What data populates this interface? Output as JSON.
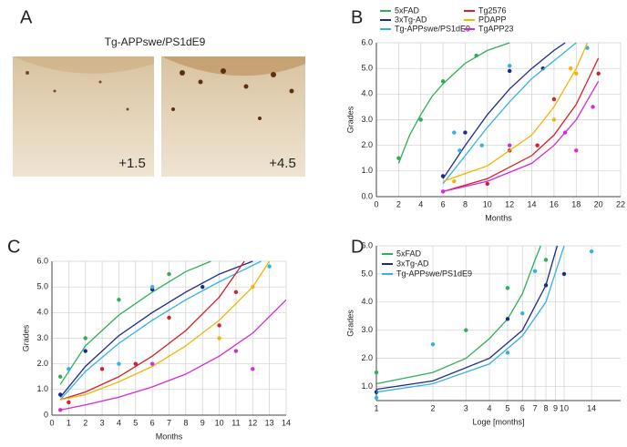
{
  "panel_a": {
    "label": "A",
    "title": "Tg-APPswe/PS1dE9",
    "images": [
      {
        "caption": "+1.5"
      },
      {
        "caption": "+4.5"
      }
    ]
  },
  "chart_data": [
    {
      "type": "scatter",
      "panel": "B",
      "x_label": "Months",
      "y_label": "Grades",
      "legend": "above",
      "grid": true,
      "xlim": [
        0,
        22
      ],
      "xticks": [
        0,
        2,
        4,
        6,
        8,
        10,
        12,
        14,
        16,
        18,
        20,
        22
      ],
      "ylim": [
        0,
        6
      ],
      "yticks": [
        {
          "value": 0,
          "label": "0.0"
        },
        {
          "value": 1,
          "label": "1.0"
        },
        {
          "value": 2,
          "label": "2.0"
        },
        {
          "value": 3,
          "label": "3.0"
        },
        {
          "value": 4,
          "label": "4.0"
        },
        {
          "value": 5,
          "label": "5.0"
        },
        {
          "value": 6,
          "label": "6.0"
        }
      ],
      "series": [
        {
          "name": "5xFAD",
          "color": "#2fae5a",
          "x": [
            2,
            4,
            6,
            9
          ],
          "values": [
            1.5,
            3.0,
            4.5,
            5.5
          ],
          "fit": {
            "x": [
              2,
              3,
              4,
              5,
              6,
              8,
              10,
              12
            ],
            "values": [
              1.3,
              2.4,
              3.2,
              3.9,
              4.4,
              5.2,
              5.7,
              6.0
            ]
          }
        },
        {
          "name": "3xTg-AD",
          "color": "#1c2a8c",
          "x": [
            6,
            8,
            12,
            15
          ],
          "values": [
            0.8,
            2.5,
            4.9,
            5.0
          ],
          "fit": {
            "x": [
              6,
              8,
              10,
              12,
              14,
              16,
              17
            ],
            "values": [
              0.7,
              2.0,
              3.2,
              4.2,
              5.0,
              5.7,
              6.0
            ]
          }
        },
        {
          "name": "Tg-APPswe/PS1dE9",
          "color": "#35b2e4",
          "x": [
            7,
            7.5,
            9.5,
            12,
            19
          ],
          "values": [
            2.5,
            1.8,
            2.0,
            5.1,
            5.8
          ],
          "fit": {
            "x": [
              6,
              8,
              10,
              12,
              14,
              16,
              18
            ],
            "values": [
              0.5,
              1.6,
              2.7,
              3.7,
              4.6,
              5.3,
              6.0
            ]
          }
        },
        {
          "name": "Tg2576",
          "color": "#d61f26",
          "x": [
            10,
            12,
            14.5,
            16,
            20
          ],
          "values": [
            0.5,
            1.8,
            2.0,
            3.8,
            4.8
          ],
          "fit": {
            "x": [
              6,
              10,
              14,
              16,
              18,
              20
            ],
            "values": [
              0.2,
              0.7,
              1.6,
              2.4,
              3.6,
              5.4
            ]
          }
        },
        {
          "name": "PDAPP",
          "color": "#f4b400",
          "x": [
            7,
            16,
            17.5,
            18
          ],
          "values": [
            0.6,
            3.0,
            5.0,
            4.8
          ],
          "fit": {
            "x": [
              6,
              10,
              14,
              16,
              18,
              19
            ],
            "values": [
              0.6,
              1.2,
              2.4,
              3.5,
              5.0,
              6.0
            ]
          }
        },
        {
          "name": "TgAPP23",
          "color": "#d62ad6",
          "x": [
            6,
            12,
            17,
            18,
            19.5
          ],
          "values": [
            0.2,
            2.0,
            2.5,
            1.8,
            3.5
          ],
          "fit": {
            "x": [
              6,
              10,
              14,
              16,
              18,
              20
            ],
            "values": [
              0.2,
              0.6,
              1.3,
              2.0,
              3.0,
              4.5
            ]
          }
        }
      ]
    },
    {
      "type": "scatter",
      "panel": "C",
      "x_label": "Months",
      "y_label": "Grades",
      "grid": true,
      "xlim": [
        0,
        14
      ],
      "xticks": [
        0,
        1,
        2,
        3,
        4,
        5,
        6,
        7,
        8,
        9,
        10,
        11,
        12,
        13,
        14
      ],
      "ylim": [
        0,
        6
      ],
      "yticks": [
        0,
        {
          "value": 1,
          "label": "1.0"
        },
        {
          "value": 2,
          "label": "2.0"
        },
        {
          "value": 3,
          "label": "3.0"
        },
        {
          "value": 4,
          "label": "4.0"
        },
        {
          "value": 5,
          "label": "5.0"
        },
        {
          "value": 6,
          "label": "6.0"
        }
      ],
      "series": [
        {
          "color": "#2fae5a",
          "x": [
            0.5,
            2,
            4,
            7
          ],
          "values": [
            1.5,
            3.0,
            4.5,
            5.5
          ],
          "fit": {
            "x": [
              0.5,
              2,
              4,
              6,
              8,
              9.5
            ],
            "values": [
              1.2,
              2.7,
              3.9,
              4.8,
              5.6,
              6.0
            ]
          }
        },
        {
          "color": "#1c2a8c",
          "x": [
            0.5,
            2,
            6,
            9
          ],
          "values": [
            0.8,
            2.5,
            4.9,
            5.0
          ],
          "fit": {
            "x": [
              0.5,
              2,
              4,
              6,
              8,
              10,
              12
            ],
            "values": [
              0.7,
              1.9,
              3.1,
              4.0,
              4.8,
              5.5,
              6.0
            ]
          }
        },
        {
          "color": "#35b2e4",
          "x": [
            1,
            4,
            6,
            13
          ],
          "values": [
            1.8,
            2.0,
            5.0,
            5.8
          ],
          "fit": {
            "x": [
              0.5,
              2,
              4,
              6,
              8,
              10,
              12.5
            ],
            "values": [
              0.6,
              1.7,
              2.8,
              3.7,
              4.5,
              5.2,
              6.0
            ]
          }
        },
        {
          "color": "#d61f26",
          "x": [
            1,
            3,
            5,
            7,
            10,
            11
          ],
          "values": [
            0.5,
            1.8,
            2.0,
            3.8,
            3.5,
            4.8
          ],
          "fit": {
            "x": [
              0.5,
              2,
              4,
              6,
              8,
              10,
              11.5
            ],
            "values": [
              0.6,
              0.9,
              1.5,
              2.3,
              3.3,
              4.6,
              6.0
            ]
          }
        },
        {
          "color": "#f4b400",
          "x": [
            10,
            12
          ],
          "values": [
            3.0,
            5.0
          ],
          "fit": {
            "x": [
              0.5,
              2,
              4,
              6,
              8,
              10,
              12,
              13
            ],
            "values": [
              0.6,
              0.8,
              1.3,
              1.9,
              2.7,
              3.7,
              5.0,
              6.0
            ]
          }
        },
        {
          "color": "#d62ad6",
          "x": [
            0.5,
            6,
            11,
            12
          ],
          "values": [
            0.2,
            2.0,
            2.5,
            1.8
          ],
          "fit": {
            "x": [
              0.5,
              2,
              4,
              6,
              8,
              10,
              12,
              14
            ],
            "values": [
              0.2,
              0.4,
              0.7,
              1.1,
              1.6,
              2.3,
              3.2,
              4.5
            ]
          }
        }
      ]
    },
    {
      "type": "scatter",
      "panel": "D",
      "x_label": "Loge [months]",
      "y_label": "Grades",
      "legend": "upper left",
      "grid": true,
      "xscale": "log",
      "xlim": [
        1,
        20
      ],
      "xticks": [
        1,
        2,
        3,
        4,
        5,
        6,
        7,
        8,
        9,
        10,
        14
      ],
      "ylim": [
        0.5,
        6
      ],
      "yticks": [
        {
          "value": 1,
          "label": "1.0"
        },
        {
          "value": 2,
          "label": "2.0"
        },
        {
          "value": 3,
          "label": "3.0"
        },
        {
          "value": 4,
          "label": "4.0"
        },
        {
          "value": 5,
          "label": "5.0"
        },
        {
          "value": 6,
          "label": "6.0"
        }
      ],
      "series": [
        {
          "name": "5xFAD",
          "color": "#2fae5a",
          "x": [
            1,
            3,
            5,
            8
          ],
          "values": [
            1.5,
            3.0,
            4.5,
            5.5
          ],
          "fit": {
            "x": [
              1,
              2,
              3,
              4,
              5,
              6,
              7,
              7.5
            ],
            "values": [
              1.1,
              1.5,
              2.0,
              2.7,
              3.4,
              4.3,
              5.5,
              6.0
            ]
          }
        },
        {
          "name": "3xTg-AD",
          "color": "#1c2a8c",
          "x": [
            1,
            5,
            8,
            10
          ],
          "values": [
            0.8,
            3.4,
            4.6,
            5.0
          ],
          "fit": {
            "x": [
              1,
              2,
              4,
              6,
              8,
              9,
              9.2
            ],
            "values": [
              0.9,
              1.2,
              2.0,
              3.0,
              4.6,
              5.8,
              6.0
            ]
          }
        },
        {
          "name": "Tg-APPswe/PS1dE9",
          "color": "#35b2e4",
          "x": [
            1,
            2,
            5,
            6,
            7,
            14
          ],
          "values": [
            0.6,
            2.5,
            2.2,
            3.6,
            5.1,
            5.8
          ],
          "fit": {
            "x": [
              1,
              2,
              4,
              6,
              8,
              10
            ],
            "values": [
              0.8,
              1.1,
              1.8,
              2.8,
              4.0,
              6.0
            ]
          }
        }
      ]
    }
  ]
}
